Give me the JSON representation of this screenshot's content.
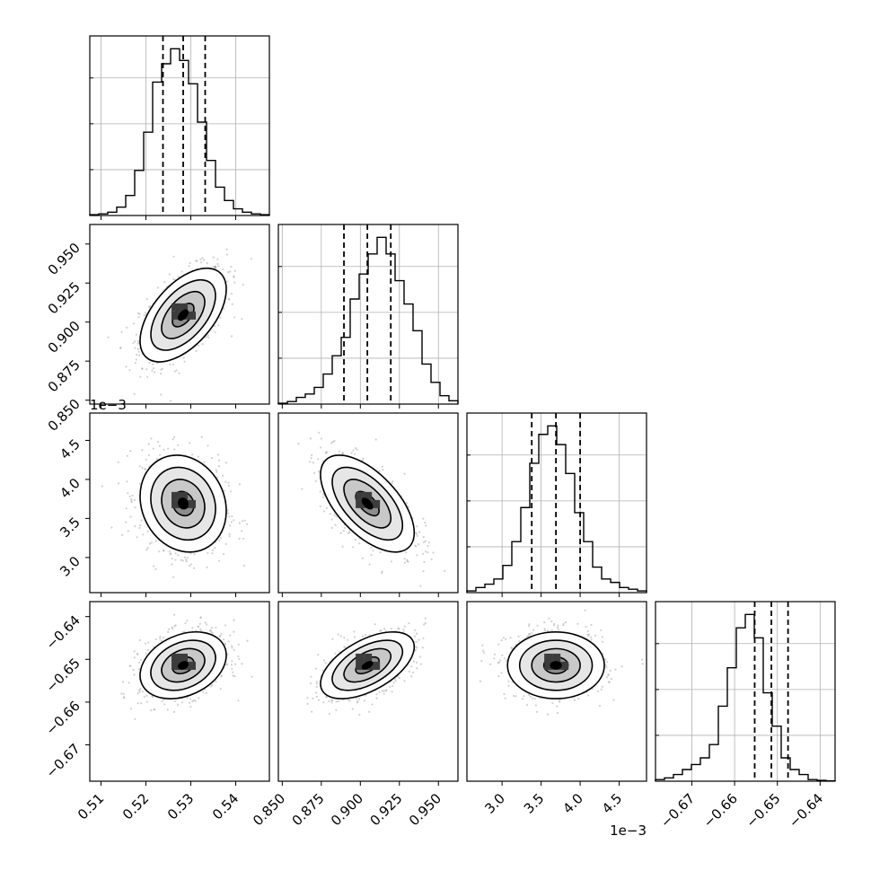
{
  "chart_data": {
    "type": "corner",
    "parameters": [
      {
        "range": [
          0.5075,
          0.5475
        ],
        "ticks": [
          0.51,
          0.52,
          0.53,
          0.54
        ],
        "tick_labels": [
          "0.51",
          "0.52",
          "0.53",
          "0.54"
        ],
        "offset_label": "",
        "quantiles": [
          0.5238,
          0.5283,
          0.5332
        ],
        "mean": 0.5283,
        "sd": 0.0048
      },
      {
        "range": [
          0.8475,
          0.9625
        ],
        "ticks": [
          0.85,
          0.875,
          0.9,
          0.925,
          0.95
        ],
        "tick_labels": [
          "0.850",
          "0.875",
          "0.900",
          "0.925",
          "0.950"
        ],
        "offset_label": "",
        "quantiles": [
          0.8895,
          0.9045,
          0.9195
        ],
        "mean": 0.9045,
        "sd": 0.015
      },
      {
        "range": [
          2.55,
          4.85
        ],
        "ticks": [
          3.0,
          3.5,
          4.0,
          4.5
        ],
        "tick_labels": [
          "3.0",
          "3.5",
          "4.0",
          "4.5"
        ],
        "offset_label": "1e−3",
        "quantiles": [
          3.38,
          3.69,
          4.0
        ],
        "mean": 3.69,
        "sd": 0.31
      },
      {
        "range": [
          -0.6785,
          -0.6365
        ],
        "ticks": [
          -0.67,
          -0.66,
          -0.65,
          -0.64
        ],
        "tick_labels": [
          "−0.67",
          "−0.66",
          "−0.65",
          "−0.64"
        ],
        "offset_label": "",
        "quantiles": [
          -0.6553,
          -0.6514,
          -0.6475
        ],
        "mean": -0.6514,
        "sd": 0.0039
      }
    ],
    "histograms": [
      [
        0.005,
        0.01,
        0.02,
        0.05,
        0.12,
        0.27,
        0.5,
        0.8,
        0.91,
        1.0,
        0.93,
        0.79,
        0.56,
        0.33,
        0.17,
        0.09,
        0.04,
        0.02,
        0.01,
        0.005
      ],
      [
        0.005,
        0.015,
        0.04,
        0.06,
        0.1,
        0.18,
        0.29,
        0.4,
        0.63,
        0.78,
        0.9,
        1.0,
        0.9,
        0.74,
        0.6,
        0.44,
        0.24,
        0.13,
        0.05,
        0.02
      ],
      [
        0.01,
        0.03,
        0.05,
        0.08,
        0.16,
        0.3,
        0.5,
        0.76,
        0.93,
        0.98,
        0.87,
        0.7,
        0.47,
        0.3,
        0.15,
        0.08,
        0.06,
        0.03,
        0.02,
        0.01
      ],
      [
        0.01,
        0.02,
        0.04,
        0.07,
        0.1,
        0.14,
        0.22,
        0.45,
        0.68,
        0.92,
        1.0,
        0.86,
        0.53,
        0.33,
        0.14,
        0.07,
        0.04,
        0.01,
        0.005,
        0.002
      ]
    ],
    "correlations": {
      "1-0": 0.55,
      "2-0": -0.15,
      "2-1": -0.6,
      "3-0": 0.3,
      "3-1": 0.55,
      "3-2": 0.0
    },
    "legend": "none",
    "grid": true
  }
}
